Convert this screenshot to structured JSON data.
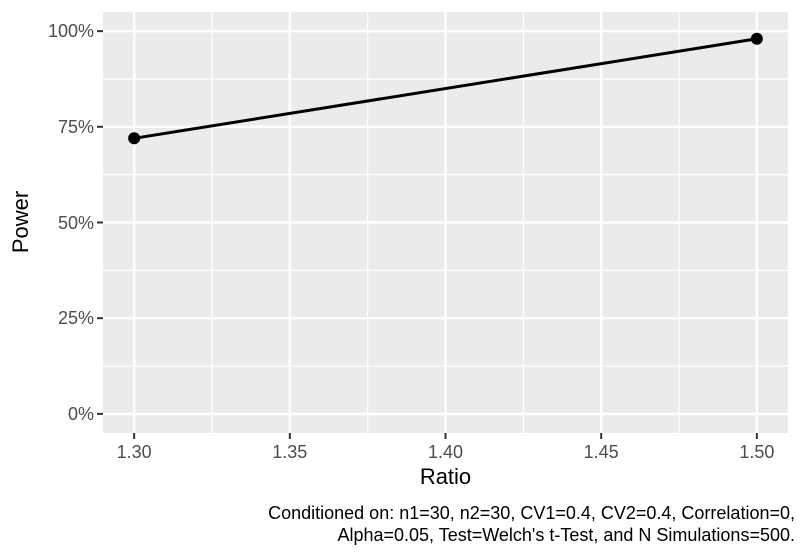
{
  "figure": {
    "colors": {
      "background": "#FFFFFF",
      "panel_background": "#EBEBEB",
      "gridline": "#FFFFFF",
      "tick_mark": "#333333",
      "tick_label": "#4D4D4D",
      "axis_title": "#000000",
      "series_line": "#000000",
      "data_point": "#000000",
      "caption_text": "#000000"
    }
  },
  "chart_data": {
    "type": "line",
    "title": "",
    "xlabel": "Ratio",
    "ylabel": "Power",
    "series": [
      {
        "name": "Power",
        "x": [
          1.3,
          1.5
        ],
        "y": [
          0.72,
          0.98
        ]
      }
    ],
    "x_ticks": [
      1.3,
      1.35,
      1.4,
      1.45,
      1.5
    ],
    "x_tick_labels": [
      "1.30",
      "1.35",
      "1.40",
      "1.45",
      "1.50"
    ],
    "y_ticks": [
      0,
      0.25,
      0.5,
      0.75,
      1.0
    ],
    "y_tick_labels": [
      "0%",
      "25%",
      "50%",
      "75%",
      "100%"
    ],
    "x_minor_ticks": [
      1.325,
      1.375,
      1.425,
      1.475
    ],
    "y_minor_ticks": [
      0.125,
      0.375,
      0.625,
      0.875
    ],
    "x_domain": [
      1.29,
      1.51
    ],
    "y_domain": [
      -0.05,
      1.05
    ],
    "grid": true,
    "legend": "none",
    "caption_lines": [
      "Conditioned on: n1=30, n2=30, CV1=0.4, CV2=0.4, Correlation=0,",
      "Alpha=0.05, Test=Welch's t-Test, and N Simulations=500."
    ]
  }
}
